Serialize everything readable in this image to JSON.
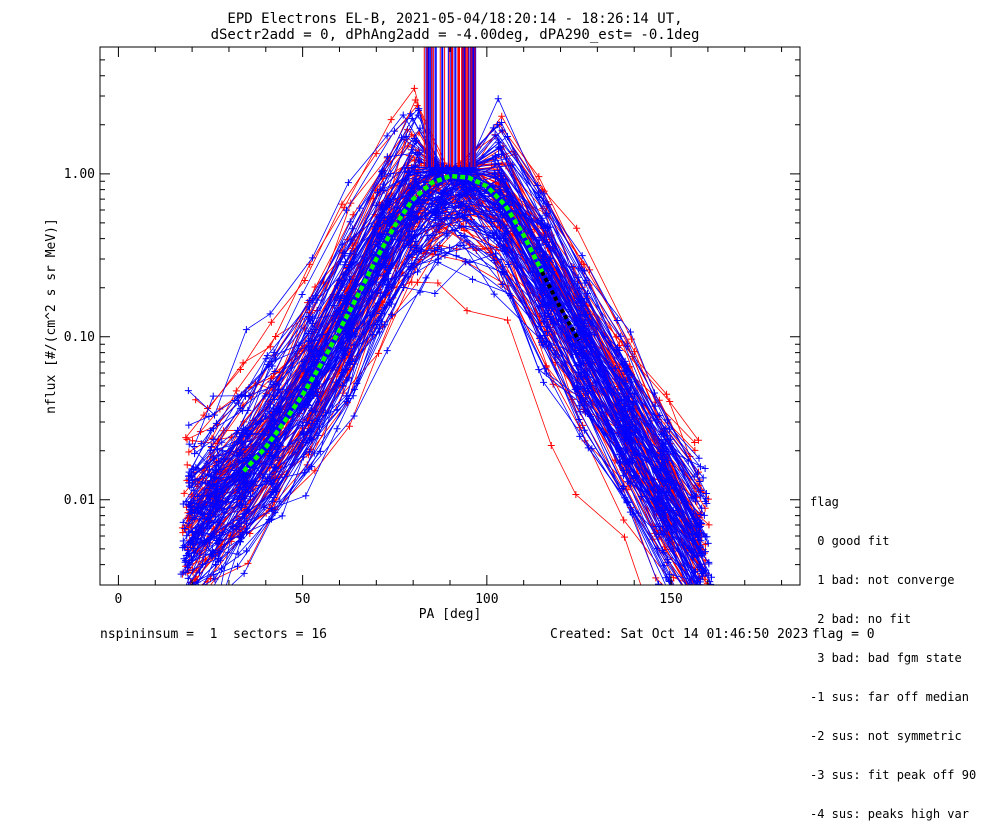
{
  "chart_data": {
    "type": "line",
    "title": "EPD Electrons EL-B, 2021-05-04/18:20:14 - 18:26:14 UT,",
    "subtitle": "dSectr2add = 0, dPhAng2add = -4.00deg, dPA290_est=  -0.1deg",
    "xlabel": "PA [deg]",
    "ylabel": "nflux [#/(cm^2 s sr MeV)]",
    "xlim": [
      -5,
      185
    ],
    "ylim": [
      0.003,
      6.0
    ],
    "yscale": "log",
    "xticks": [
      0,
      50,
      100,
      150
    ],
    "xtick_labels": [
      "0",
      "50",
      "100",
      "150"
    ],
    "yticks": [
      0.01,
      0.1,
      1.0
    ],
    "ytick_labels": [
      "0.01",
      "0.10",
      "1.00"
    ],
    "grid": false,
    "series": [
      {
        "color": "#0000ff",
        "x": [
          34,
          40,
          45,
          50,
          55,
          60,
          65,
          70,
          75,
          80,
          85,
          90,
          95,
          100,
          105,
          110,
          115,
          120,
          125
        ],
        "values": [
          0.015,
          0.021,
          0.03,
          0.044,
          0.068,
          0.11,
          0.18,
          0.3,
          0.48,
          0.7,
          0.88,
          0.97,
          0.95,
          0.84,
          0.64,
          0.42,
          0.25,
          0.15,
          0.095
        ]
      },
      {
        "color": "#00ff00",
        "x": [
          34,
          40,
          45,
          50,
          55,
          60,
          65,
          70,
          75,
          80,
          85,
          90,
          95,
          100,
          105,
          110,
          115
        ],
        "values": [
          0.015,
          0.021,
          0.03,
          0.044,
          0.068,
          0.11,
          0.18,
          0.3,
          0.48,
          0.7,
          0.88,
          0.97,
          0.95,
          0.84,
          0.64,
          0.42,
          0.25
        ]
      },
      {
        "color": "#000000",
        "x": [
          115,
          120,
          125
        ],
        "values": [
          0.25,
          0.15,
          0.095
        ]
      }
    ],
    "colors": {
      "red_series": "#ff0000",
      "blue_series": "#0000ff",
      "fit": "#00ff00",
      "fit_tail": "#000000"
    }
  },
  "legend": {
    "title": "flag",
    "entries": [
      " 0 good fit",
      " 1 bad: not converge",
      " 2 bad: no fit",
      " 3 bad: bad fgm state",
      "-1 sus: far off median",
      "-2 sus: not symmetric",
      "-3 sus: fit peak off 90",
      "-4 sus: peaks high var"
    ]
  },
  "footer": {
    "left": "nspininsum =  1  sectors = 16",
    "created": "Created: Sat Oct 14 01:46:50 2023",
    "flag": "flag = 0"
  }
}
